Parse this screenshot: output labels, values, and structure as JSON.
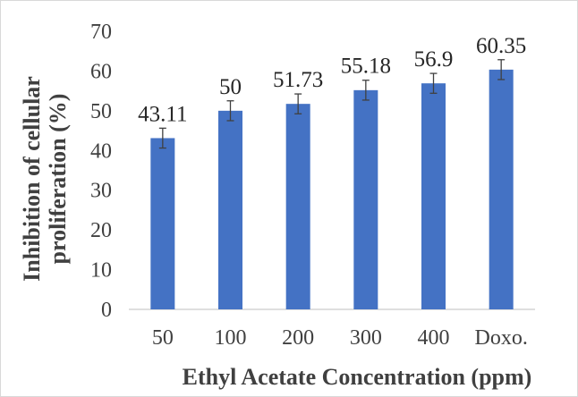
{
  "chart_data": {
    "type": "bar",
    "title": "",
    "xlabel": "Ethyl Acetate Concentration  (ppm)",
    "ylabel_lines": [
      "Inhibition of cellular",
      "proliferation (%)"
    ],
    "categories": [
      "50",
      "100",
      "200",
      "300",
      "400",
      "Doxo."
    ],
    "series": [
      {
        "values": [
          43.11,
          50,
          51.73,
          55.18,
          56.9,
          60.35
        ],
        "data_labels": [
          "43.11",
          "50",
          "51.73",
          "55.18",
          "56.9",
          "60.35"
        ],
        "error": [
          2.5,
          2.5,
          2.5,
          2.5,
          2.5,
          2.5
        ]
      }
    ],
    "yticks": [
      "0",
      "10",
      "20",
      "30",
      "40",
      "50",
      "60",
      "70"
    ],
    "ylim": [
      0,
      70
    ],
    "grid": false,
    "legend": "none",
    "bar_color": "#4472c4",
    "error_color": "#404040",
    "axis_color": "#bfbfbf"
  }
}
